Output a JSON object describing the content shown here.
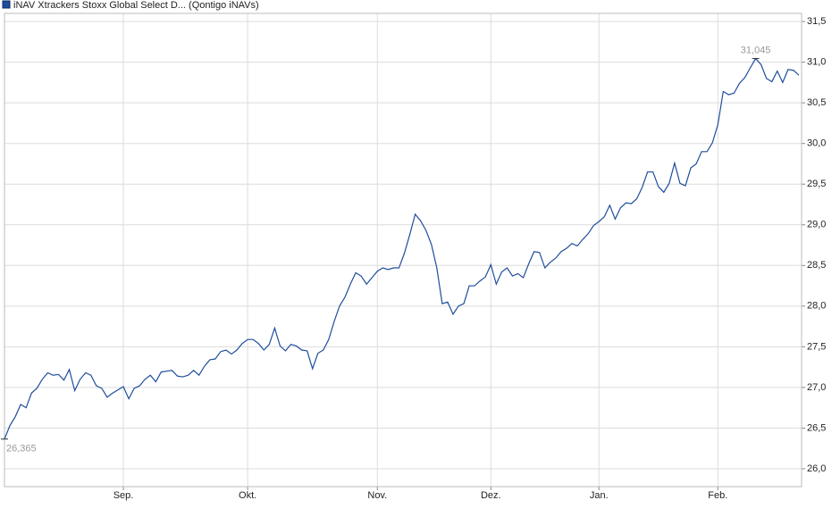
{
  "chart_data": {
    "type": "line",
    "title": "iNAV Xtrackers Stoxx Global Select D... (Qontigo iNAVs)",
    "color": "#1f4e9c",
    "grid": true,
    "xlim": [
      0,
      147
    ],
    "xticks": [
      {
        "value": 22,
        "label": "Sep."
      },
      {
        "value": 45,
        "label": "Okt."
      },
      {
        "value": 69,
        "label": "Nov."
      },
      {
        "value": 90,
        "label": "Dez."
      },
      {
        "value": 110,
        "label": "Jan."
      },
      {
        "value": 132,
        "label": "Feb."
      }
    ],
    "ylim": [
      25.78,
      31.6
    ],
    "yticks": [
      {
        "value": 26,
        "label": "26,0"
      },
      {
        "value": 26.5,
        "label": "26,5"
      },
      {
        "value": 27,
        "label": "27,0"
      },
      {
        "value": 27.5,
        "label": "27,5"
      },
      {
        "value": 28,
        "label": "28,0"
      },
      {
        "value": 28.5,
        "label": "28,5"
      },
      {
        "value": 29,
        "label": "29,0"
      },
      {
        "value": 29.5,
        "label": "29,5"
      },
      {
        "value": 30,
        "label": "30,0"
      },
      {
        "value": 30.5,
        "label": "30,5"
      },
      {
        "value": 31,
        "label": "31,0"
      },
      {
        "value": 31.5,
        "label": "31,5"
      }
    ],
    "values": [
      26.365,
      26.53,
      26.64,
      26.79,
      26.75,
      26.93,
      26.99,
      27.1,
      27.18,
      27.15,
      27.16,
      27.09,
      27.22,
      26.96,
      27.1,
      27.18,
      27.15,
      27.02,
      26.99,
      26.88,
      26.93,
      26.97,
      27.01,
      26.86,
      26.99,
      27.02,
      27.1,
      27.15,
      27.07,
      27.19,
      27.2,
      27.21,
      27.14,
      27.13,
      27.15,
      27.21,
      27.15,
      27.26,
      27.34,
      27.35,
      27.44,
      27.46,
      27.41,
      27.46,
      27.54,
      27.59,
      27.59,
      27.54,
      27.46,
      27.53,
      27.73,
      27.51,
      27.45,
      27.53,
      27.51,
      27.46,
      27.45,
      27.23,
      27.42,
      27.46,
      27.59,
      27.81,
      28.0,
      28.11,
      28.27,
      28.41,
      28.37,
      28.27,
      28.35,
      28.43,
      28.47,
      28.45,
      28.47,
      28.47,
      28.65,
      28.88,
      29.13,
      29.05,
      28.93,
      28.76,
      28.47,
      28.03,
      28.05,
      27.9,
      28.0,
      28.03,
      28.25,
      28.25,
      28.31,
      28.36,
      28.51,
      28.27,
      28.42,
      28.47,
      28.37,
      28.4,
      28.35,
      28.52,
      28.67,
      28.66,
      28.47,
      28.54,
      28.59,
      28.67,
      28.71,
      28.77,
      28.74,
      28.82,
      28.89,
      28.99,
      29.04,
      29.1,
      29.24,
      29.07,
      29.21,
      29.27,
      29.26,
      29.32,
      29.46,
      29.65,
      29.65,
      29.47,
      29.4,
      29.51,
      29.76,
      29.51,
      29.48,
      29.7,
      29.75,
      29.9,
      29.9,
      30.01,
      30.23,
      30.64,
      30.6,
      30.62,
      30.74,
      30.81,
      30.93,
      31.045,
      30.97,
      30.8,
      30.76,
      30.89,
      30.75,
      30.91,
      30.9,
      30.84
    ],
    "annotations": [
      {
        "label": "26,365",
        "x": 0,
        "y": 26.365
      },
      {
        "label": "31,045",
        "x": 139,
        "y": 31.045
      }
    ]
  }
}
